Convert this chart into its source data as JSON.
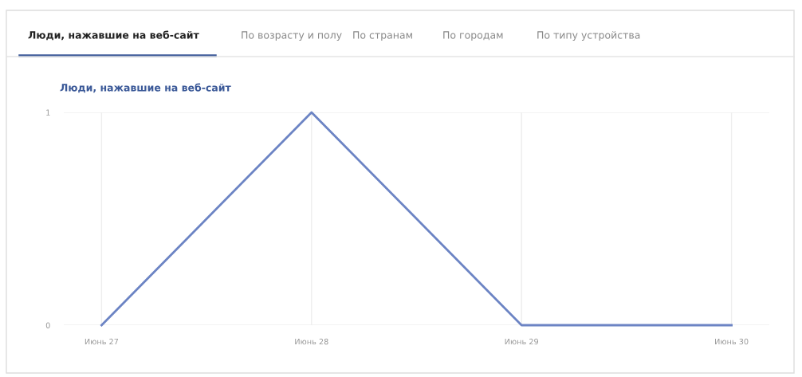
{
  "chart_data": {
    "type": "line",
    "title": "Люди, нажавшие на веб-сайт",
    "annotations": [
      "Люди, нажавшие на веб-сайт",
      "По возрасту и полу",
      "По странам",
      "По городам",
      "По типу устройства"
    ],
    "categories": [
      "Июнь 27",
      "Июнь 28",
      "Июнь 29",
      "Июнь 30"
    ],
    "series": [
      {
        "color": "#6c84c4",
        "values": [
          0,
          1,
          0,
          0
        ]
      }
    ],
    "ylim": [
      0,
      1
    ],
    "yticks": [
      0,
      1
    ],
    "grid": true,
    "marker": "none",
    "line_style": "solid"
  }
}
